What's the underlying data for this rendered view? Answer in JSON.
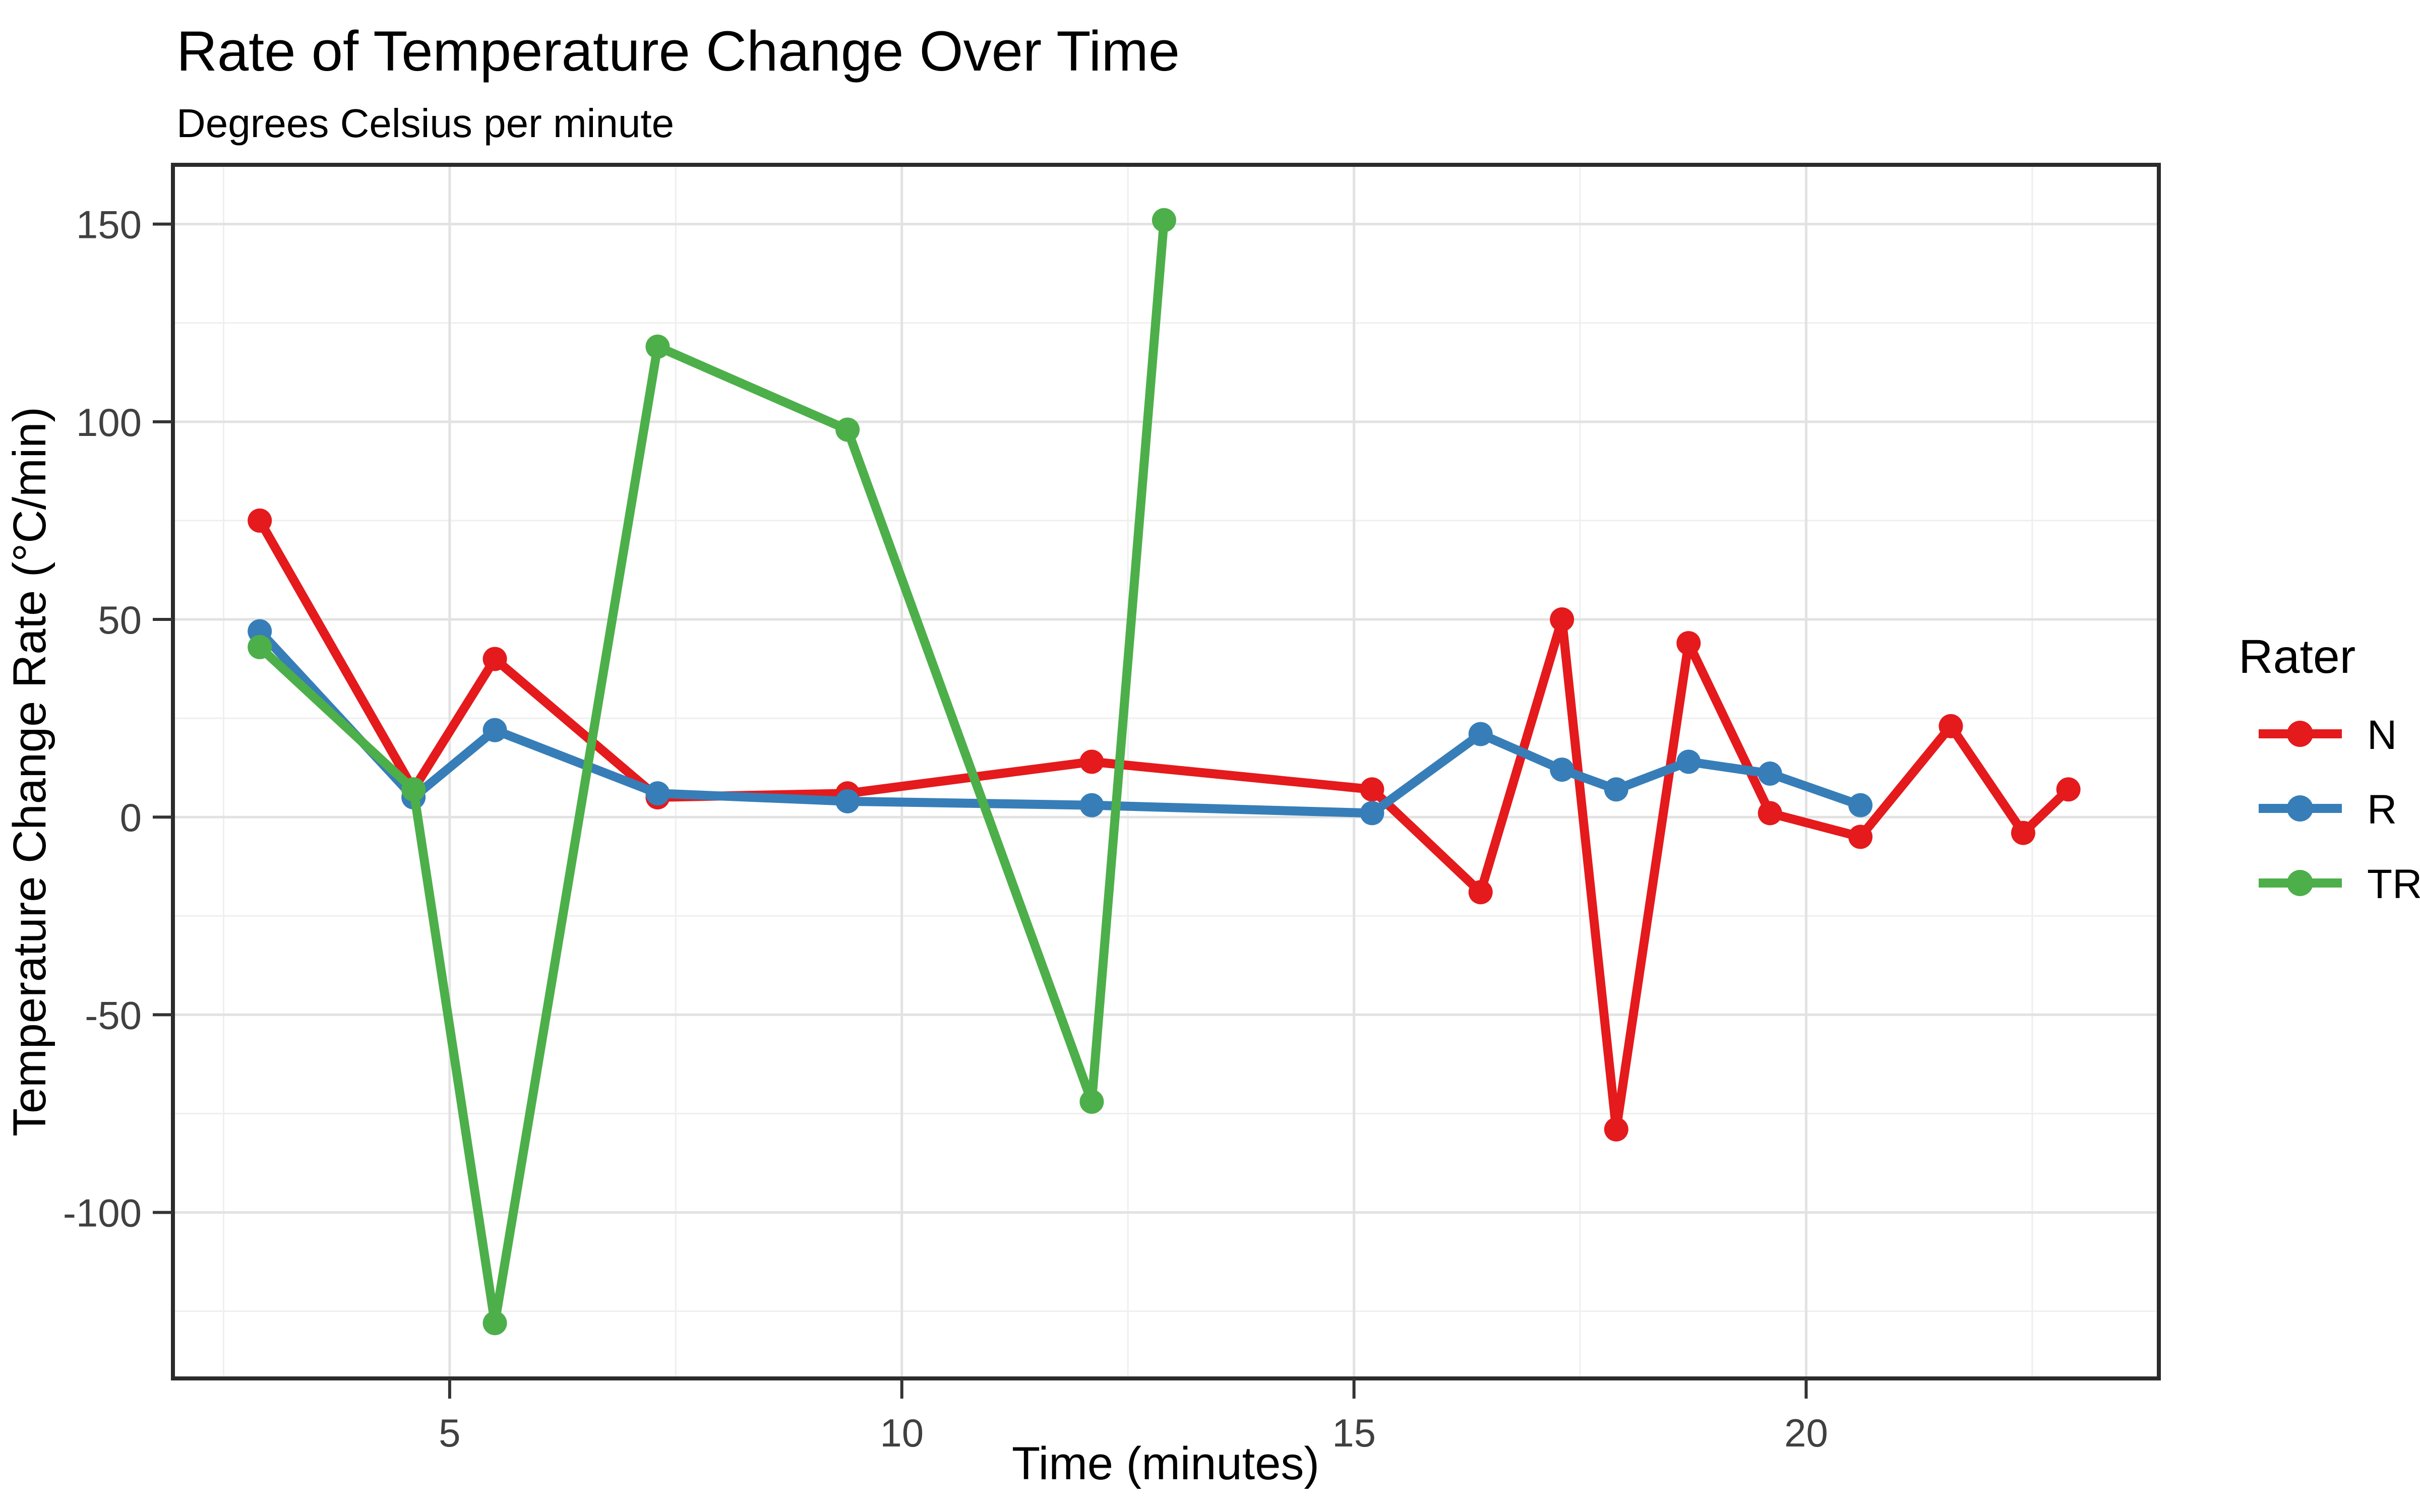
{
  "header": {
    "title": "Rate of Temperature Change Over Time",
    "subtitle": "Degrees Celsius per minute"
  },
  "chart_data": {
    "type": "line",
    "title": "Rate of Temperature Change Over Time",
    "subtitle": "Degrees Celsius per minute",
    "xlabel": "Time (minutes)",
    "ylabel": "Temperature Change Rate (°C/min)",
    "xlim": [
      1.94,
      23.9
    ],
    "ylim": [
      -142,
      165
    ],
    "x_major_ticks": [
      5,
      10,
      15,
      20
    ],
    "x_minor_gridlines": [
      2.5,
      7.5,
      12.5,
      17.5,
      22.5
    ],
    "y_major_ticks": [
      150,
      100,
      50,
      0,
      -50,
      -100
    ],
    "y_minor_gridlines": [
      125,
      75,
      25,
      -25,
      -75,
      -125
    ],
    "grid": "on",
    "panel_background": "#ffffff",
    "major_grid_color": "#e2e2e2",
    "minor_grid_color": "#efefef",
    "panel_border_color": "#2b2b2b",
    "legend_position": "right",
    "legend_title": "Rater",
    "series": [
      {
        "name": "N",
        "color": "#E41A1C",
        "points": [
          [
            2.9,
            75
          ],
          [
            4.6,
            7
          ],
          [
            5.5,
            40
          ],
          [
            7.3,
            5
          ],
          [
            9.4,
            6
          ],
          [
            12.1,
            14
          ],
          [
            15.2,
            7
          ],
          [
            16.4,
            -19
          ],
          [
            17.3,
            50
          ],
          [
            17.9,
            -79
          ],
          [
            18.7,
            44
          ],
          [
            19.6,
            1
          ],
          [
            20.6,
            -5
          ],
          [
            21.6,
            23
          ],
          [
            22.4,
            -4
          ],
          [
            22.9,
            7
          ]
        ]
      },
      {
        "name": "R",
        "color": "#377EB8",
        "points": [
          [
            2.9,
            47
          ],
          [
            4.6,
            5
          ],
          [
            5.5,
            22
          ],
          [
            7.3,
            6
          ],
          [
            9.4,
            4
          ],
          [
            12.1,
            3
          ],
          [
            15.2,
            1
          ],
          [
            16.4,
            21
          ],
          [
            17.3,
            12
          ],
          [
            17.9,
            7
          ],
          [
            18.7,
            14
          ],
          [
            19.6,
            11
          ],
          [
            20.6,
            3
          ]
        ]
      },
      {
        "name": "TR",
        "color": "#4DAF4A",
        "points": [
          [
            2.9,
            43
          ],
          [
            4.6,
            7
          ],
          [
            5.5,
            -128
          ],
          [
            7.3,
            119
          ],
          [
            9.4,
            98
          ],
          [
            12.1,
            -72
          ],
          [
            12.9,
            151
          ]
        ]
      }
    ]
  }
}
